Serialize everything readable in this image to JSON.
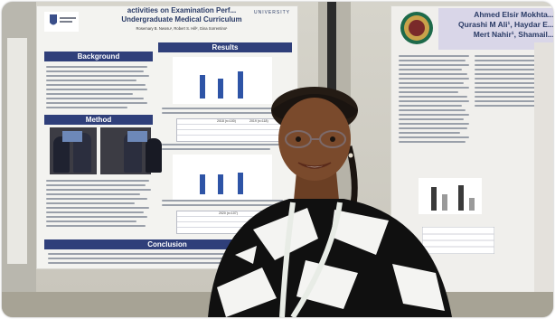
{
  "photo": {
    "description_free": true,
    "left_poster": {
      "title_line": "activities on Examination Perf...",
      "title_line2": "Undergraduate Medical Curriculum",
      "authors": "Rosemary B. Nwosu¹, Robert S. Hill², Gina Sorrentino¹",
      "university": "UNIVERSITY",
      "sections": {
        "background": "Background",
        "results": "Results",
        "method": "Method",
        "conclusion": "Conclusion"
      },
      "chart_rows": [
        "2018 (n=100)",
        "2019 (n=118)",
        "2020 (n=107)"
      ]
    },
    "right_poster": {
      "authors_line1": "Ahmed Elsir Mokhta...",
      "authors_line2": "Qurashi M Ali¹, Haydar E...",
      "authors_line3": "Mert Nahir¹, Shamail..."
    },
    "colors": {
      "poster_header_blue": "#2f3f7a",
      "bar_blue": "#2e54a6",
      "dress_black": "#101010",
      "dress_white": "#f4f4f2",
      "lanyard": "#e8ece6"
    }
  }
}
